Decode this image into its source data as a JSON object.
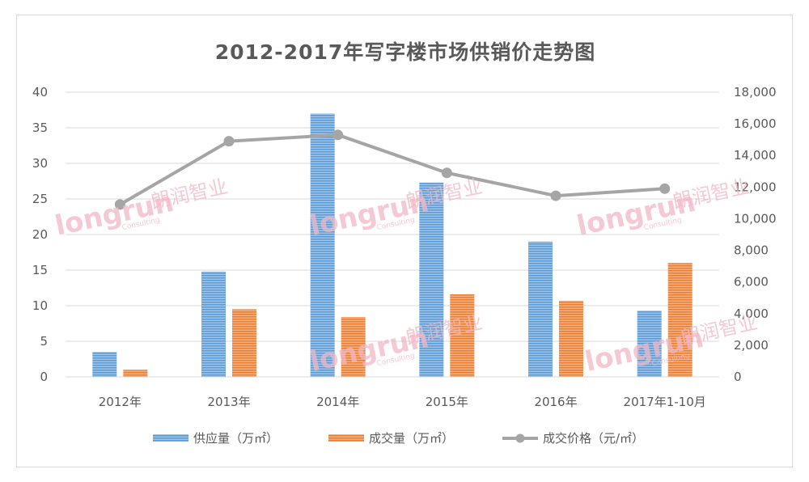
{
  "chart_data": {
    "type": "bar",
    "title": "2012-2017年写字楼市场供销价走势图",
    "categories": [
      "2012年",
      "2013年",
      "2014年",
      "2015年",
      "2016年",
      "2017年1-10月"
    ],
    "series": [
      {
        "name": "供应量（万㎡）",
        "kind": "bar",
        "axis": "left",
        "color": "#5b9bd5",
        "values": [
          3.5,
          14.8,
          37,
          27.3,
          19,
          9.3
        ]
      },
      {
        "name": "成交量（万㎡）",
        "kind": "bar",
        "axis": "left",
        "color": "#ed7d31",
        "values": [
          1,
          9.5,
          8.4,
          11.6,
          10.7,
          16
        ]
      },
      {
        "name": "成交价格（元/㎡）",
        "kind": "line",
        "axis": "right",
        "color": "#a5a5a5",
        "values": [
          10900,
          14900,
          15300,
          12900,
          11450,
          11900
        ]
      }
    ],
    "y_left": {
      "range": [
        0,
        40
      ],
      "ticks": [
        "0",
        "5",
        "10",
        "15",
        "20",
        "25",
        "30",
        "35",
        "40"
      ]
    },
    "y_right": {
      "range": [
        0,
        18000
      ],
      "ticks": [
        "0",
        "2,000",
        "4,000",
        "6,000",
        "8,000",
        "10,000",
        "12,000",
        "14,000",
        "16,000",
        "18,000"
      ]
    },
    "grid": true,
    "legend_position": "bottom"
  },
  "watermark": {
    "brand": "longrun",
    "brand_cn": "朗润智业",
    "sub": "Consulting"
  }
}
